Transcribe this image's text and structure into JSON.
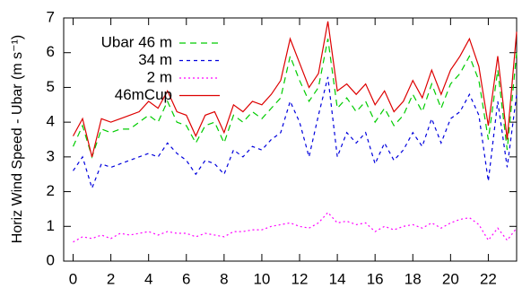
{
  "chart_data": {
    "type": "line",
    "y_label": "Horiz Wind Speed - Ubar (m s⁻¹)",
    "x": [
      0,
      0.5,
      1,
      1.5,
      2,
      2.5,
      3,
      3.5,
      4,
      4.5,
      5,
      5.5,
      6,
      6.5,
      7,
      7.5,
      8,
      8.5,
      9,
      9.5,
      10,
      10.5,
      11,
      11.5,
      12,
      12.5,
      13,
      13.5,
      14,
      14.5,
      15,
      15.5,
      16,
      16.5,
      17,
      17.5,
      18,
      18.5,
      19,
      19.5,
      20,
      20.5,
      21,
      21.5,
      22,
      22.5,
      23,
      23.5
    ],
    "series": [
      {
        "name": "Ubar 46 m",
        "color": "#00cc00",
        "dash": "7,5",
        "values": [
          3.3,
          3.9,
          3.0,
          3.8,
          3.7,
          3.8,
          3.8,
          4.0,
          4.2,
          4.0,
          4.6,
          4.0,
          3.9,
          3.4,
          3.9,
          4.0,
          3.4,
          4.2,
          4.0,
          4.3,
          4.1,
          4.4,
          4.7,
          5.9,
          5.2,
          4.6,
          5.0,
          6.4,
          4.4,
          4.7,
          4.3,
          4.6,
          4.0,
          4.4,
          3.9,
          4.2,
          4.8,
          4.3,
          5.1,
          4.4,
          5.1,
          5.4,
          5.9,
          5.2,
          3.5,
          5.5,
          3.2,
          6.0
        ]
      },
      {
        "name": "34 m",
        "color": "#0000dd",
        "dash": "4,4",
        "values": [
          2.6,
          3.0,
          2.1,
          2.8,
          2.7,
          2.8,
          2.9,
          3.0,
          3.1,
          3.0,
          3.4,
          3.1,
          2.9,
          2.5,
          2.9,
          2.8,
          2.5,
          3.2,
          3.0,
          3.3,
          3.2,
          3.5,
          3.7,
          4.6,
          4.0,
          3.0,
          4.2,
          5.3,
          3.0,
          3.7,
          3.4,
          3.7,
          2.8,
          3.4,
          2.9,
          3.2,
          3.7,
          3.3,
          4.1,
          3.4,
          4.1,
          4.3,
          4.8,
          4.2,
          2.3,
          4.6,
          2.7,
          4.8
        ]
      },
      {
        "name": "2 m",
        "color": "#ff00ff",
        "dash": "2,3",
        "values": [
          0.55,
          0.7,
          0.65,
          0.75,
          0.65,
          0.8,
          0.75,
          0.8,
          0.85,
          0.75,
          0.85,
          0.8,
          0.8,
          0.7,
          0.8,
          0.75,
          0.7,
          0.85,
          0.85,
          0.9,
          0.9,
          1.0,
          1.05,
          1.1,
          1.0,
          0.95,
          1.1,
          1.4,
          1.1,
          1.15,
          1.05,
          1.1,
          0.85,
          1.0,
          0.9,
          1.0,
          1.05,
          0.95,
          1.1,
          0.95,
          1.1,
          1.2,
          1.25,
          1.05,
          0.6,
          0.95,
          0.6,
          0.95
        ]
      },
      {
        "name": "46mCup",
        "color": "#dd0000",
        "dash": "",
        "values": [
          3.6,
          4.1,
          3.0,
          4.1,
          4.0,
          4.1,
          4.2,
          4.3,
          4.6,
          4.4,
          4.9,
          4.3,
          4.2,
          3.6,
          4.2,
          4.3,
          3.7,
          4.5,
          4.3,
          4.6,
          4.5,
          4.8,
          5.2,
          6.4,
          5.7,
          5.0,
          5.4,
          6.9,
          4.9,
          5.1,
          4.8,
          5.1,
          4.5,
          4.9,
          4.3,
          4.6,
          5.2,
          4.7,
          5.5,
          4.8,
          5.5,
          5.9,
          6.4,
          5.6,
          3.9,
          5.9,
          3.5,
          6.6
        ]
      }
    ],
    "xlim": [
      -0.5,
      23.5
    ],
    "xticks": [
      0,
      2,
      4,
      6,
      8,
      10,
      12,
      14,
      16,
      18,
      20,
      22
    ],
    "ylim": [
      0,
      7
    ],
    "yticks": [
      0,
      1,
      2,
      3,
      4,
      5,
      6,
      7
    ],
    "legend": "upper-left"
  }
}
